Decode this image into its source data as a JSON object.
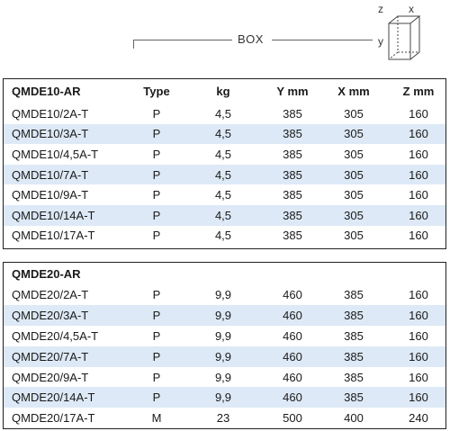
{
  "box": {
    "label": "BOX",
    "axis_z": "z",
    "axis_x": "x",
    "axis_y": "y"
  },
  "table1": {
    "headers": [
      "QMDE10-AR",
      "Type",
      "kg",
      "Y mm",
      "X mm",
      "Z mm"
    ],
    "rows": [
      [
        "QMDE10/2A-T",
        "P",
        "4,5",
        "385",
        "305",
        "160"
      ],
      [
        "QMDE10/3A-T",
        "P",
        "4,5",
        "385",
        "305",
        "160"
      ],
      [
        "QMDE10/4,5A-T",
        "P",
        "4,5",
        "385",
        "305",
        "160"
      ],
      [
        "QMDE10/7A-T",
        "P",
        "4,5",
        "385",
        "305",
        "160"
      ],
      [
        "QMDE10/9A-T",
        "P",
        "4,5",
        "385",
        "305",
        "160"
      ],
      [
        "QMDE10/14A-T",
        "P",
        "4,5",
        "385",
        "305",
        "160"
      ],
      [
        "QMDE10/17A-T",
        "P",
        "4,5",
        "385",
        "305",
        "160"
      ]
    ]
  },
  "table2": {
    "title": "QMDE20-AR",
    "rows": [
      [
        "QMDE20/2A-T",
        "P",
        "9,9",
        "460",
        "385",
        "160"
      ],
      [
        "QMDE20/3A-T",
        "P",
        "9,9",
        "460",
        "385",
        "160"
      ],
      [
        "QMDE20/4,5A-T",
        "P",
        "9,9",
        "460",
        "385",
        "160"
      ],
      [
        "QMDE20/7A-T",
        "P",
        "9,9",
        "460",
        "385",
        "160"
      ],
      [
        "QMDE20/9A-T",
        "P",
        "9,9",
        "460",
        "385",
        "160"
      ],
      [
        "QMDE20/14A-T",
        "P",
        "9,9",
        "460",
        "385",
        "160"
      ],
      [
        "QMDE20/17A-T",
        "M",
        "23",
        "500",
        "400",
        "240"
      ]
    ]
  },
  "colors": {
    "row_alt": "#dde9f6",
    "border": "#222222"
  }
}
